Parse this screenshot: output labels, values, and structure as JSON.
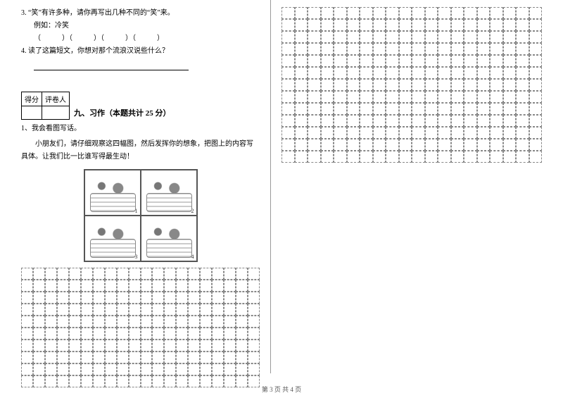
{
  "questions": {
    "q3_line1": "3. “笑”有许多种，请你再写出几种不同的“笑”来。",
    "q3_example": "例如：冷笑",
    "q3_blanks": "（　　　）（　　　）（　　　）（　　　）",
    "q4": "4. 读了这篇短文，你想对那个流浪汉说些什么？"
  },
  "scorebox": {
    "col1": "得分",
    "col2": "评卷人"
  },
  "section9": {
    "title": "九、习作（本题共计 25 分）",
    "item1": "1、我会看图写话。",
    "desc": "　　小朋友们，请仔细观察这四幅图，然后发挥你的想象，把图上的内容写具体。让我们比一比谁写得最生动！"
  },
  "footer": "第 3 页  共 4 页",
  "left_grid": {
    "rows": 10,
    "cols": 20
  },
  "right_grid": {
    "rows": 13,
    "cols": 20
  },
  "panel_nums": [
    "1",
    "2",
    "3",
    "4"
  ]
}
